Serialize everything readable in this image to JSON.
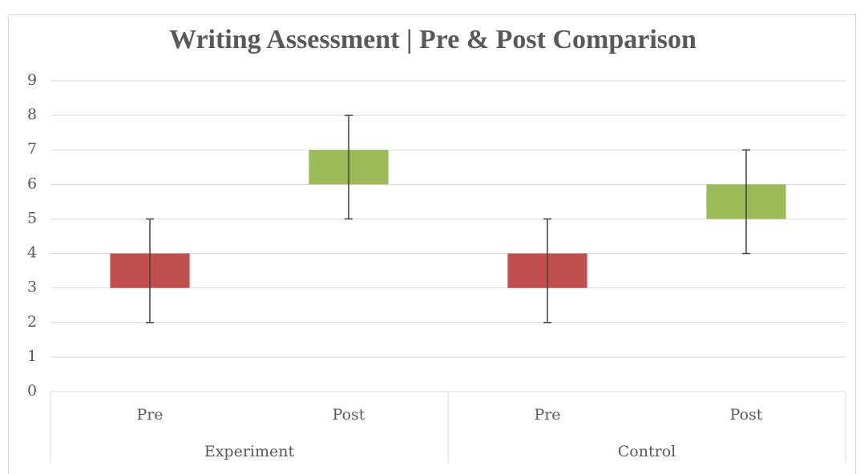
{
  "chart_data": {
    "type": "box",
    "title": "Writing Assessment | Pre & Post Comparison",
    "categories": [
      "Pre",
      "Post",
      "Pre",
      "Post"
    ],
    "groups": [
      "Experiment",
      "Control"
    ],
    "low": [
      3,
      6,
      3,
      5
    ],
    "high": [
      4,
      7,
      4,
      6
    ],
    "whisker_low": [
      2,
      5,
      2,
      4
    ],
    "whisker_high": [
      5,
      8,
      5,
      7
    ],
    "colors": [
      "#c0504d",
      "#9bbb59",
      "#c0504d",
      "#9bbb59"
    ],
    "ylim": [
      0,
      9
    ],
    "yticks": [
      0,
      1,
      2,
      3,
      4,
      5,
      6,
      7,
      8,
      9
    ],
    "grid": true
  }
}
